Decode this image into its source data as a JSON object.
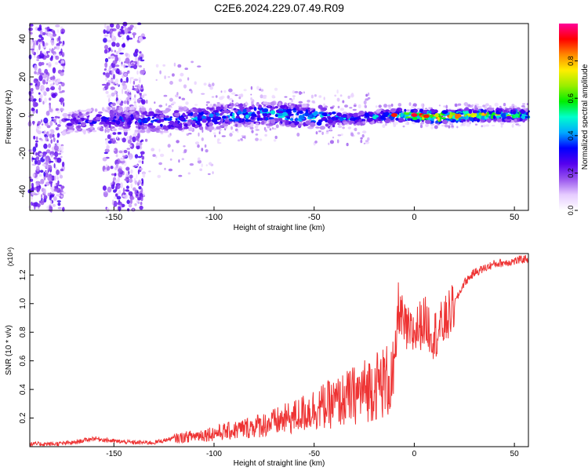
{
  "title": "C2E6.2024.229.07.49.R09",
  "chart_data": [
    {
      "type": "heatmap",
      "xlabel": "Height of straight line (km)",
      "ylabel": "Frequency (Hz)",
      "xlim": [
        -192,
        57
      ],
      "ylim": [
        -50,
        48
      ],
      "x_ticks": [
        -150,
        -100,
        -50,
        0,
        50
      ],
      "y_ticks": [
        -40,
        -20,
        0,
        20,
        40
      ],
      "colorbar": {
        "label": "Normalized spectral amplitude",
        "range": [
          0,
          1
        ],
        "ticks": [
          0.0,
          0.2,
          0.4,
          0.6,
          0.8
        ],
        "colors": [
          "#ffffff",
          "#e6ccff",
          "#9955ee",
          "#5500ee",
          "#0000ff",
          "#00aaff",
          "#00ffcc",
          "#00ee00",
          "#99ee00",
          "#ffee00",
          "#ff8800",
          "#ff0000",
          "#ff0099"
        ]
      },
      "ridge": {
        "x": [
          -175,
          -150,
          -125,
          -100,
          -75,
          -50,
          -30,
          -10,
          0,
          10,
          30,
          57
        ],
        "frequency": [
          -4,
          -2,
          -3,
          -1,
          1,
          -1,
          -2,
          0,
          0,
          -1,
          0,
          0
        ],
        "peak_amplitude": [
          0.3,
          0.35,
          0.4,
          0.45,
          0.5,
          0.5,
          0.45,
          0.55,
          0.9,
          0.95,
          0.85,
          0.6
        ]
      },
      "scatter_regions": [
        {
          "x": [
            -192,
            -175
          ],
          "frequency": [
            -50,
            48
          ],
          "amplitude": 0.2
        },
        {
          "x": [
            -155,
            -135
          ],
          "frequency": [
            -50,
            48
          ],
          "amplitude": 0.2
        }
      ]
    },
    {
      "type": "line",
      "xlabel": "Height of straight line (km)",
      "ylabel": "SNR (10 * v/v)",
      "y_scale_label": "(x10⁴)",
      "xlim": [
        -192,
        57
      ],
      "ylim": [
        0,
        1.35
      ],
      "x_ticks": [
        -150,
        -100,
        -50,
        0,
        50
      ],
      "y_ticks": [
        0.2,
        0.4,
        0.6,
        0.8,
        1.0,
        1.2
      ],
      "series": [
        {
          "color": "#ee3333",
          "x": [
            -192,
            -180,
            -170,
            -160,
            -150,
            -140,
            -130,
            -120,
            -110,
            -100,
            -90,
            -80,
            -70,
            -60,
            -50,
            -40,
            -30,
            -20,
            -15,
            -10,
            -8,
            -5,
            -2,
            0,
            5,
            10,
            15,
            20,
            25,
            30,
            40,
            50,
            57
          ],
          "y": [
            0.02,
            0.02,
            0.03,
            0.06,
            0.04,
            0.03,
            0.03,
            0.06,
            0.08,
            0.1,
            0.12,
            0.15,
            0.18,
            0.22,
            0.28,
            0.32,
            0.38,
            0.45,
            0.48,
            0.5,
            1.0,
            0.85,
            0.8,
            0.82,
            0.9,
            0.8,
            0.88,
            1.0,
            1.15,
            1.22,
            1.28,
            1.3,
            1.32
          ]
        }
      ]
    }
  ]
}
